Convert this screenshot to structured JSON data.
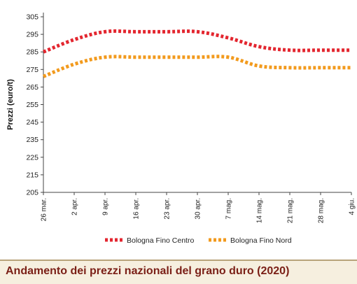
{
  "chart_data": {
    "type": "line",
    "title": "Andamento dei prezzi nazionali del grano duro (2020)",
    "xlabel": "",
    "ylabel": "Prezzi (euro/t)",
    "ylim": [
      205,
      305
    ],
    "yticks": [
      205,
      215,
      225,
      235,
      245,
      255,
      265,
      275,
      285,
      295,
      305
    ],
    "grid": false,
    "legend": "bottom",
    "categories": [
      "26 mar.",
      "2 apr.",
      "9 apr.",
      "16 apr.",
      "23 apr.",
      "30 apr.",
      "7 mag.",
      "14 mag.",
      "21 mag.",
      "28 mag.",
      "4 giu."
    ],
    "series": [
      {
        "name": "Bologna Fino Centro",
        "color": "#e3262f",
        "values": [
          285,
          292,
          296.5,
          296.5,
          296.5,
          296.5,
          293,
          288,
          286,
          286,
          286
        ]
      },
      {
        "name": "Bologna Fino Nord",
        "color": "#f29a1d",
        "values": [
          271,
          278,
          282,
          282,
          282,
          282,
          282,
          277,
          276,
          276,
          276
        ]
      }
    ]
  }
}
